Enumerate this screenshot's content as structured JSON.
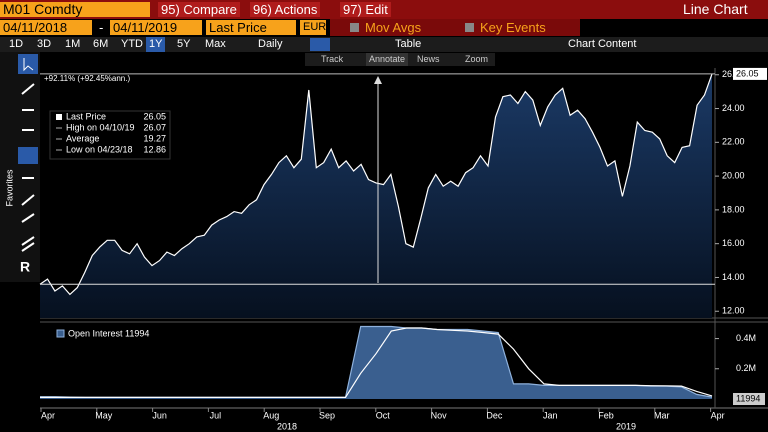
{
  "toolbar": {
    "ticker": "M01 Comdty",
    "menu": [
      "95) Compare",
      "96) Actions",
      "97) Edit"
    ],
    "view": "Line Chart",
    "start_date": "04/11/2018",
    "date_sep": "-",
    "end_date": "04/11/2019",
    "field": "Last Price",
    "currency": "EUR",
    "mov_avgs": "Mov Avgs",
    "key_events": "Key Events",
    "ranges": [
      "1D",
      "3D",
      "1M",
      "6M",
      "YTD",
      "1Y",
      "5Y",
      "Max"
    ],
    "active_range": "1Y",
    "frequency": "Daily",
    "table": "Table",
    "chart_content": "Chart Content",
    "tools": [
      "Track",
      "Annotate",
      "News",
      "Zoom"
    ],
    "favorites": "Favorites"
  },
  "price_chart": {
    "type": "area",
    "annotation": "+92.11% (+92.45%ann.)",
    "legend": [
      {
        "label": "Last Price",
        "value": 26.05
      },
      {
        "label": "High on 04/10/19",
        "value": 26.07
      },
      {
        "label": "Average",
        "value": 19.27
      },
      {
        "label": "Low on 04/23/18",
        "value": 12.86
      }
    ],
    "values": [
      13.6,
      13.9,
      13.2,
      13.5,
      13.0,
      13.4,
      14.3,
      15.3,
      15.8,
      16.2,
      16.2,
      15.6,
      15.4,
      16.0,
      15.2,
      14.7,
      15.0,
      15.5,
      15.3,
      15.7,
      16.0,
      16.4,
      16.5,
      17.1,
      17.4,
      17.6,
      17.9,
      17.8,
      18.3,
      18.6,
      19.5,
      20.1,
      20.8,
      21.2,
      20.5,
      21.0,
      25.1,
      20.5,
      20.8,
      21.6,
      20.5,
      20.9,
      20.3,
      20.7,
      19.8,
      19.6,
      19.5,
      20.1,
      18.2,
      16.0,
      15.8,
      17.5,
      19.3,
      20.1,
      19.4,
      19.7,
      19.4,
      20.2,
      20.5,
      21.2,
      20.6,
      23.5,
      24.7,
      24.8,
      24.3,
      25.0,
      24.5,
      23.0,
      24.1,
      24.8,
      25.2,
      23.6,
      23.9,
      23.4,
      22.6,
      21.7,
      20.6,
      20.9,
      18.8,
      20.6,
      23.2,
      22.7,
      22.6,
      22.2,
      21.2,
      20.8,
      21.7,
      21.8,
      24.2,
      24.8,
      26.05
    ],
    "color": "#ffffff",
    "ylim": [
      11.6,
      26.4
    ],
    "yticks": [
      {
        "value": 12,
        "label": "12.00"
      },
      {
        "value": 14,
        "label": "14.00"
      },
      {
        "value": 16,
        "label": "16.00"
      },
      {
        "value": 18,
        "label": "18.00"
      },
      {
        "value": 20,
        "label": "20.00"
      },
      {
        "value": 22,
        "label": "22.00"
      },
      {
        "value": 24,
        "label": "24.00"
      },
      {
        "value": 26,
        "label": "26.00"
      }
    ]
  },
  "oi_chart": {
    "type": "area",
    "legend": "Open Interest 11994",
    "series": [
      {
        "name": "Open Interest",
        "color": "#3a5f8f",
        "values": [
          15000,
          15000,
          12000,
          10000,
          10000,
          10000,
          10000,
          10000,
          10000,
          10000,
          10000,
          10000,
          10000,
          10000,
          10000,
          10000,
          10000,
          10000,
          10000,
          10000,
          10000,
          480000,
          480000,
          480000,
          470000,
          470000,
          460000,
          460000,
          460000,
          450000,
          440000,
          100000,
          100000,
          90000,
          90000,
          90000,
          90000,
          90000,
          90000,
          90000,
          85000,
          85000,
          80000,
          30000,
          11994
        ]
      },
      {
        "color": "#ffffff",
        "values": [
          10000,
          10000,
          10000,
          10000,
          10000,
          10000,
          10000,
          10000,
          10000,
          10000,
          10000,
          10000,
          10000,
          10000,
          10000,
          10000,
          10000,
          10000,
          10000,
          10000,
          10000,
          170000,
          300000,
          450000,
          470000,
          470000,
          460000,
          455000,
          450000,
          440000,
          430000,
          330000,
          200000,
          100000,
          90000,
          90000,
          90000,
          90000,
          90000,
          90000,
          88000,
          87000,
          85000,
          50000,
          20000
        ]
      }
    ],
    "ylim": [
      -60000,
      490000
    ],
    "yticks": [
      {
        "value": 200000,
        "label": "0.2M"
      },
      {
        "value": 400000,
        "label": "0.4M"
      }
    ]
  },
  "x_axis": {
    "months": [
      "Apr",
      "May",
      "Jun",
      "Jul",
      "Aug",
      "Sep",
      "Oct",
      "Nov",
      "Dec",
      "Jan",
      "Feb",
      "Mar",
      "Apr"
    ],
    "years": [
      "2018",
      "2019"
    ]
  }
}
